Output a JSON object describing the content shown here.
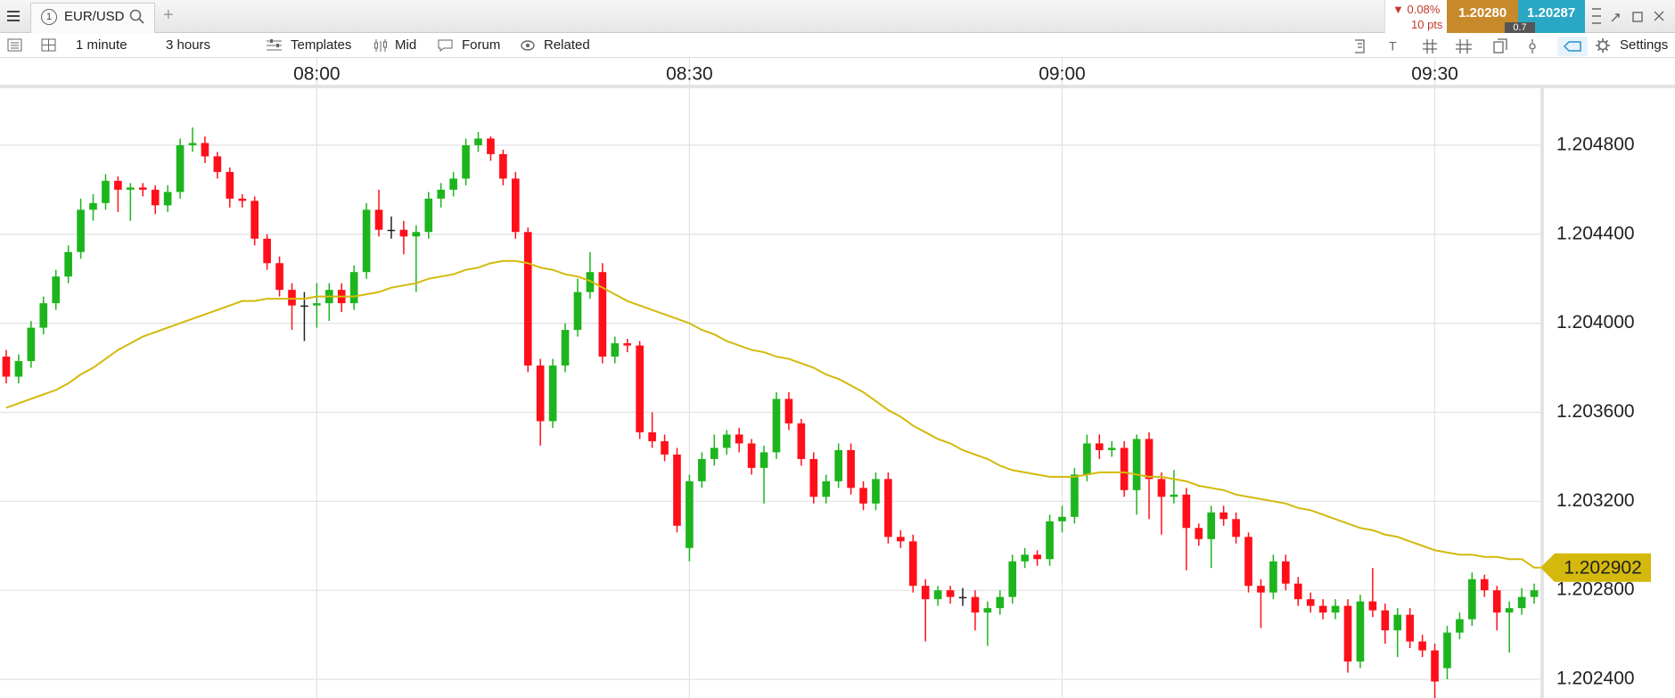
{
  "header": {
    "tab_number": "1",
    "instrument": "EUR/USD",
    "new_tab": "+",
    "change_pct": "▼ 0.08%",
    "change_pts": "10 pts",
    "bid": "1.20280",
    "ask": "1.20287",
    "spread": "0.7"
  },
  "toolbar": {
    "interval": "1 minute",
    "range": "3 hours",
    "templates": "Templates",
    "price_type": "Mid",
    "forum": "Forum",
    "related": "Related",
    "settings": "Settings"
  },
  "chart_data": {
    "type": "candlestick",
    "grid": true,
    "up_color": "#1db51d",
    "down_color": "#ff0f1a",
    "doji_color": "#222222",
    "categories": [
      "07:35",
      "07:36",
      "07:37",
      "07:38",
      "07:39",
      "07:40",
      "07:41",
      "07:42",
      "07:43",
      "07:44",
      "07:45",
      "07:46",
      "07:47",
      "07:48",
      "07:49",
      "07:50",
      "07:51",
      "07:52",
      "07:53",
      "07:54",
      "07:55",
      "07:56",
      "07:57",
      "07:58",
      "07:59",
      "08:00",
      "08:01",
      "08:02",
      "08:03",
      "08:04",
      "08:05",
      "08:06",
      "08:07",
      "08:08",
      "08:09",
      "08:10",
      "08:11",
      "08:12",
      "08:13",
      "08:14",
      "08:15",
      "08:16",
      "08:17",
      "08:18",
      "08:19",
      "08:20",
      "08:21",
      "08:22",
      "08:23",
      "08:24",
      "08:25",
      "08:26",
      "08:27",
      "08:28",
      "08:29",
      "08:30",
      "08:31",
      "08:32",
      "08:33",
      "08:34",
      "08:35",
      "08:36",
      "08:37",
      "08:38",
      "08:39",
      "08:40",
      "08:41",
      "08:42",
      "08:43",
      "08:44",
      "08:45",
      "08:46",
      "08:47",
      "08:48",
      "08:49",
      "08:50",
      "08:51",
      "08:52",
      "08:53",
      "08:54",
      "08:55",
      "08:56",
      "08:57",
      "08:58",
      "08:59",
      "09:00",
      "09:01",
      "09:02",
      "09:03",
      "09:04",
      "09:05",
      "09:06",
      "09:07",
      "09:08",
      "09:09",
      "09:10",
      "09:11",
      "09:12",
      "09:13",
      "09:14",
      "09:15",
      "09:16",
      "09:17",
      "09:18",
      "09:19",
      "09:20",
      "09:21",
      "09:22",
      "09:23",
      "09:24",
      "09:25",
      "09:26",
      "09:27",
      "09:28",
      "09:29",
      "09:30",
      "09:31",
      "09:32",
      "09:33",
      "09:34",
      "09:35",
      "09:36",
      "09:37",
      "09:38"
    ],
    "xticks": [
      "08:00",
      "08:30",
      "09:00",
      "09:30"
    ],
    "ylim": [
      1.202316,
      1.205044
    ],
    "yticks": [
      {
        "value": 1.2024,
        "label": "1.202400"
      },
      {
        "value": 1.2028,
        "label": "1.202800"
      },
      {
        "value": 1.2032,
        "label": "1.203200"
      },
      {
        "value": 1.2036,
        "label": "1.203600"
      },
      {
        "value": 1.204,
        "label": "1.204000"
      },
      {
        "value": 1.2044,
        "label": "1.204400"
      },
      {
        "value": 1.2048,
        "label": "1.204800"
      }
    ],
    "open": [
      1.20385,
      1.20376,
      1.20383,
      1.20398,
      1.20409,
      1.20421,
      1.20432,
      1.20451,
      1.20454,
      1.20464,
      1.2046,
      1.20461,
      1.2046,
      1.20453,
      1.20459,
      1.2048,
      1.20481,
      1.20475,
      1.20468,
      1.20456,
      1.20455,
      1.20438,
      1.20427,
      1.20415,
      1.20408,
      1.20408,
      1.20409,
      1.20415,
      1.20409,
      1.20423,
      1.20451,
      1.20442,
      1.20442,
      1.20439,
      1.20441,
      1.20456,
      1.2046,
      1.20465,
      1.2048,
      1.20483,
      1.20476,
      1.20465,
      1.20441,
      1.20381,
      1.20356,
      1.20381,
      1.20397,
      1.20414,
      1.20423,
      1.20385,
      1.20391,
      1.2039,
      1.20351,
      1.20347,
      1.20341,
      1.20299,
      1.20329,
      1.20339,
      1.20344,
      1.2035,
      1.20346,
      1.20335,
      1.20342,
      1.20366,
      1.20355,
      1.20339,
      1.20322,
      1.20329,
      1.20343,
      1.20326,
      1.20319,
      1.2033,
      1.20304,
      1.20302,
      1.20282,
      1.20276,
      1.2028,
      1.20277,
      1.20277,
      1.2027,
      1.20272,
      1.20277,
      1.20293,
      1.20296,
      1.20294,
      1.20311,
      1.20313,
      1.20332,
      1.20346,
      1.20343,
      1.20344,
      1.20325,
      1.20348,
      1.2033,
      1.20322,
      1.20323,
      1.20308,
      1.20303,
      1.20315,
      1.20312,
      1.20304,
      1.20282,
      1.20279,
      1.20293,
      1.20283,
      1.20276,
      1.20273,
      1.2027,
      1.20273,
      1.20248,
      1.20275,
      1.20271,
      1.20262,
      1.20269,
      1.20257,
      1.20253,
      1.20245,
      1.20261,
      1.20267,
      1.20285,
      1.2028,
      1.2027,
      1.20272,
      1.20277
    ],
    "high": [
      1.20388,
      1.20386,
      1.20401,
      1.20412,
      1.20424,
      1.20435,
      1.20456,
      1.20458,
      1.20467,
      1.20466,
      1.20463,
      1.20463,
      1.20462,
      1.20462,
      1.20483,
      1.20488,
      1.20484,
      1.20477,
      1.2047,
      1.20458,
      1.20457,
      1.2044,
      1.2043,
      1.20418,
      1.20414,
      1.20418,
      1.20418,
      1.20418,
      1.20426,
      1.20454,
      1.2046,
      1.20448,
      1.20446,
      1.20444,
      1.20459,
      1.20463,
      1.20468,
      1.20483,
      1.20486,
      1.20484,
      1.20478,
      1.20468,
      1.20443,
      1.20384,
      1.20384,
      1.204,
      1.2042,
      1.20432,
      1.20427,
      1.20394,
      1.20393,
      1.20392,
      1.2036,
      1.2035,
      1.20344,
      1.20332,
      1.20342,
      1.2035,
      1.20352,
      1.20353,
      1.20348,
      1.20345,
      1.20369,
      1.20369,
      1.20357,
      1.20342,
      1.20332,
      1.20346,
      1.20346,
      1.20329,
      1.20333,
      1.20333,
      1.20307,
      1.20305,
      1.20285,
      1.20282,
      1.20282,
      1.20281,
      1.2028,
      1.20275,
      1.2028,
      1.20296,
      1.20299,
      1.20298,
      1.20314,
      1.20318,
      1.20335,
      1.2035,
      1.2035,
      1.20347,
      1.20347,
      1.2035,
      1.20351,
      1.20333,
      1.20334,
      1.20326,
      1.2031,
      1.20318,
      1.20318,
      1.20315,
      1.20306,
      1.20285,
      1.20296,
      1.20296,
      1.20286,
      1.20279,
      1.20276,
      1.20276,
      1.20276,
      1.20278,
      1.2029,
      1.20274,
      1.20272,
      1.20272,
      1.2026,
      1.20256,
      1.20264,
      1.2027,
      1.20288,
      1.20287,
      1.20282,
      1.20275,
      1.20281,
      1.20283
    ],
    "low": [
      1.20373,
      1.20373,
      1.2038,
      1.20395,
      1.20406,
      1.20418,
      1.20429,
      1.20446,
      1.20451,
      1.2045,
      1.20446,
      1.20457,
      1.20449,
      1.2045,
      1.20456,
      1.20477,
      1.20472,
      1.20465,
      1.20452,
      1.20452,
      1.20435,
      1.20424,
      1.20412,
      1.20397,
      1.20392,
      1.20398,
      1.20401,
      1.20405,
      1.20406,
      1.2042,
      1.20439,
      1.20438,
      1.20431,
      1.20414,
      1.20438,
      1.20452,
      1.20457,
      1.20462,
      1.20477,
      1.20473,
      1.20462,
      1.20438,
      1.20378,
      1.20345,
      1.20353,
      1.20378,
      1.20394,
      1.20411,
      1.20382,
      1.20382,
      1.20387,
      1.20348,
      1.20344,
      1.20338,
      1.20306,
      1.20293,
      1.20326,
      1.20336,
      1.20341,
      1.20342,
      1.20332,
      1.20319,
      1.20339,
      1.20352,
      1.20336,
      1.20319,
      1.20319,
      1.20326,
      1.20323,
      1.20316,
      1.20316,
      1.20301,
      1.20299,
      1.20279,
      1.20257,
      1.20273,
      1.20274,
      1.20273,
      1.20262,
      1.20255,
      1.20269,
      1.20274,
      1.2029,
      1.20291,
      1.20291,
      1.20306,
      1.2031,
      1.20329,
      1.20339,
      1.2034,
      1.20322,
      1.20314,
      1.20312,
      1.20305,
      1.20319,
      1.20289,
      1.203,
      1.2029,
      1.20309,
      1.20301,
      1.20279,
      1.20263,
      1.20276,
      1.2028,
      1.20273,
      1.2027,
      1.20267,
      1.20267,
      1.20243,
      1.20245,
      1.20268,
      1.20256,
      1.2025,
      1.20254,
      1.2025,
      1.20231,
      1.2024,
      1.20258,
      1.20264,
      1.20277,
      1.20262,
      1.20252,
      1.20269,
      1.20274
    ],
    "close": [
      1.20376,
      1.20383,
      1.20398,
      1.20409,
      1.20421,
      1.20432,
      1.20451,
      1.20454,
      1.20464,
      1.2046,
      1.20461,
      1.2046,
      1.20453,
      1.20459,
      1.2048,
      1.20481,
      1.20475,
      1.20468,
      1.20456,
      1.20455,
      1.20438,
      1.20427,
      1.20415,
      1.20408,
      1.20408,
      1.20409,
      1.20415,
      1.20409,
      1.20423,
      1.20451,
      1.20442,
      1.20442,
      1.20439,
      1.20441,
      1.20456,
      1.2046,
      1.20465,
      1.2048,
      1.20483,
      1.20476,
      1.20465,
      1.20441,
      1.20381,
      1.20356,
      1.20381,
      1.20397,
      1.20414,
      1.20423,
      1.20385,
      1.20391,
      1.2039,
      1.20351,
      1.20347,
      1.20341,
      1.20309,
      1.20329,
      1.20339,
      1.20344,
      1.2035,
      1.20346,
      1.20335,
      1.20342,
      1.20366,
      1.20355,
      1.20339,
      1.20322,
      1.20329,
      1.20343,
      1.20326,
      1.20319,
      1.2033,
      1.20304,
      1.20302,
      1.20282,
      1.20276,
      1.2028,
      1.20277,
      1.20277,
      1.2027,
      1.20272,
      1.20277,
      1.20293,
      1.20296,
      1.20294,
      1.20311,
      1.20313,
      1.20332,
      1.20346,
      1.20343,
      1.20344,
      1.20325,
      1.20348,
      1.2033,
      1.20322,
      1.20323,
      1.20308,
      1.20303,
      1.20315,
      1.20312,
      1.20304,
      1.20282,
      1.20279,
      1.20293,
      1.20283,
      1.20276,
      1.20273,
      1.2027,
      1.20273,
      1.20248,
      1.20275,
      1.20271,
      1.20262,
      1.20269,
      1.20257,
      1.20253,
      1.20239,
      1.20261,
      1.20267,
      1.20285,
      1.2028,
      1.2027,
      1.20272,
      1.20277,
      1.2028
    ],
    "ma": {
      "color": "#d4b90c",
      "values": [
        1.20362,
        1.20364,
        1.20366,
        1.20368,
        1.2037,
        1.20373,
        1.20377,
        1.2038,
        1.20384,
        1.20388,
        1.20391,
        1.20394,
        1.20396,
        1.20398,
        1.204,
        1.20402,
        1.20404,
        1.20406,
        1.20408,
        1.2041,
        1.2041,
        1.20411,
        1.20411,
        1.20411,
        1.20411,
        1.20412,
        1.20412,
        1.20412,
        1.20412,
        1.20413,
        1.20414,
        1.20416,
        1.20417,
        1.20418,
        1.2042,
        1.20421,
        1.20422,
        1.20424,
        1.20425,
        1.20427,
        1.20428,
        1.20428,
        1.20427,
        1.20425,
        1.20424,
        1.20422,
        1.20421,
        1.20419,
        1.20416,
        1.20413,
        1.2041,
        1.20408,
        1.20406,
        1.20404,
        1.20402,
        1.204,
        1.20397,
        1.20395,
        1.20392,
        1.2039,
        1.20388,
        1.20387,
        1.20385,
        1.20384,
        1.20382,
        1.2038,
        1.20377,
        1.20375,
        1.20372,
        1.20369,
        1.20365,
        1.20361,
        1.20358,
        1.20354,
        1.20351,
        1.20348,
        1.20346,
        1.20343,
        1.20341,
        1.20339,
        1.20336,
        1.20334,
        1.20333,
        1.20332,
        1.20331,
        1.20331,
        1.20331,
        1.20332,
        1.20333,
        1.20333,
        1.20333,
        1.20332,
        1.20331,
        1.20331,
        1.2033,
        1.20329,
        1.20327,
        1.20326,
        1.20325,
        1.20323,
        1.20322,
        1.20321,
        1.2032,
        1.20319,
        1.20317,
        1.20316,
        1.20314,
        1.20312,
        1.2031,
        1.20308,
        1.20307,
        1.20305,
        1.20304,
        1.20302,
        1.203,
        1.20298,
        1.20297,
        1.20296,
        1.20296,
        1.20295,
        1.20295,
        1.20294,
        1.20294,
        1.202902
      ]
    }
  }
}
